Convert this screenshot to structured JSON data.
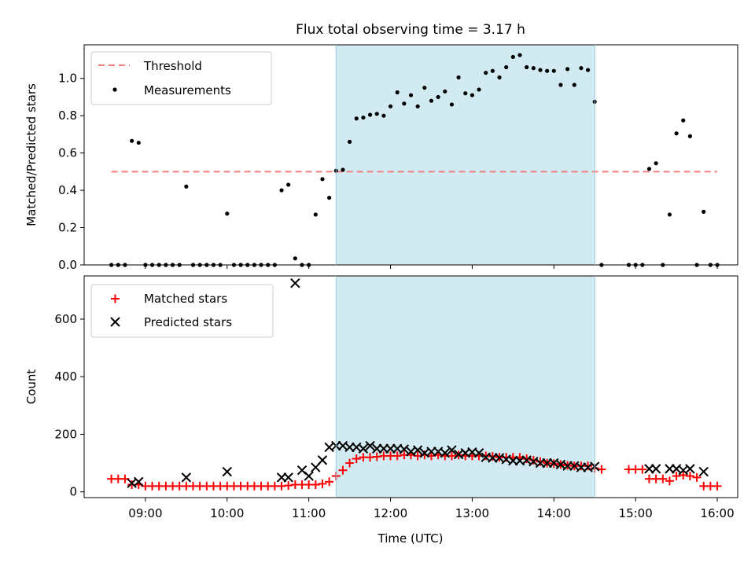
{
  "title": "Flux total observing time = 3.17 h",
  "colors": {
    "threshold": "#f08080",
    "measurements": "#000000",
    "matched": "#ff0000",
    "predicted": "#000000",
    "shade": "#add8e6"
  },
  "chart_data": [
    {
      "type": "scatter",
      "ylabel": "Matched/Predicted stars",
      "x_range": [
        "08:15",
        "16:15"
      ],
      "ylim": [
        0,
        1.18
      ],
      "yticks": [
        "0.0",
        "0.2",
        "0.4",
        "0.6",
        "0.8",
        "1.0"
      ],
      "shaded_interval": [
        "11:20",
        "14:30"
      ],
      "legend_position": "top-left",
      "legend": [
        "Threshold",
        "Measurements"
      ],
      "threshold": {
        "name": "Threshold",
        "value": 0.5,
        "x": [
          "08:35",
          "16:00"
        ]
      },
      "series": [
        {
          "name": "Measurements",
          "marker": "dot",
          "points": [
            [
              "08:35",
              0
            ],
            [
              "08:40",
              0
            ],
            [
              "08:45",
              0
            ],
            [
              "08:50",
              0.665
            ],
            [
              "08:55",
              0.655
            ],
            [
              "09:00",
              0
            ],
            [
              "09:05",
              0
            ],
            [
              "09:10",
              0
            ],
            [
              "09:15",
              0
            ],
            [
              "09:20",
              0
            ],
            [
              "09:25",
              0
            ],
            [
              "09:30",
              0.42
            ],
            [
              "09:35",
              0
            ],
            [
              "09:40",
              0
            ],
            [
              "09:45",
              0
            ],
            [
              "09:50",
              0
            ],
            [
              "09:55",
              0
            ],
            [
              "10:00",
              0.275
            ],
            [
              "10:05",
              0
            ],
            [
              "10:10",
              0
            ],
            [
              "10:15",
              0
            ],
            [
              "10:20",
              0
            ],
            [
              "10:25",
              0
            ],
            [
              "10:30",
              0
            ],
            [
              "10:35",
              0
            ],
            [
              "10:40",
              0.4
            ],
            [
              "10:45",
              0.43
            ],
            [
              "10:50",
              0.035
            ],
            [
              "10:55",
              0
            ],
            [
              "11:00",
              0
            ],
            [
              "11:05",
              0.27
            ],
            [
              "11:10",
              0.46
            ],
            [
              "11:15",
              0.36
            ],
            [
              "11:20",
              0.505
            ],
            [
              "11:25",
              0.51
            ],
            [
              "11:30",
              0.66
            ],
            [
              "11:35",
              0.785
            ],
            [
              "11:40",
              0.79
            ],
            [
              "11:45",
              0.805
            ],
            [
              "11:50",
              0.81
            ],
            [
              "11:55",
              0.8
            ],
            [
              "12:00",
              0.85
            ],
            [
              "12:05",
              0.925
            ],
            [
              "12:10",
              0.865
            ],
            [
              "12:15",
              0.91
            ],
            [
              "12:20",
              0.85
            ],
            [
              "12:25",
              0.95
            ],
            [
              "12:30",
              0.88
            ],
            [
              "12:35",
              0.9
            ],
            [
              "12:40",
              0.93
            ],
            [
              "12:45",
              0.86
            ],
            [
              "12:50",
              1.005
            ],
            [
              "12:55",
              0.92
            ],
            [
              "13:00",
              0.91
            ],
            [
              "13:05",
              0.94
            ],
            [
              "13:10",
              1.03
            ],
            [
              "13:15",
              1.04
            ],
            [
              "13:20",
              1.005
            ],
            [
              "13:25",
              1.06
            ],
            [
              "13:30",
              1.115
            ],
            [
              "13:35",
              1.125
            ],
            [
              "13:40",
              1.06
            ],
            [
              "13:45",
              1.055
            ],
            [
              "13:50",
              1.045
            ],
            [
              "13:55",
              1.04
            ],
            [
              "14:00",
              1.04
            ],
            [
              "14:05",
              0.965
            ],
            [
              "14:10",
              1.05
            ],
            [
              "14:15",
              0.965
            ],
            [
              "14:20",
              1.055
            ],
            [
              "14:25",
              1.045
            ],
            [
              "14:30",
              0.875
            ],
            [
              "14:35",
              0
            ],
            [
              "14:55",
              0
            ],
            [
              "15:00",
              0
            ],
            [
              "15:05",
              0
            ],
            [
              "15:10",
              0.515
            ],
            [
              "15:15",
              0.545
            ],
            [
              "15:20",
              0
            ],
            [
              "15:25",
              0.27
            ],
            [
              "15:30",
              0.705
            ],
            [
              "15:35",
              0.775
            ],
            [
              "15:40",
              0.69
            ],
            [
              "15:45",
              0
            ],
            [
              "15:50",
              0.285
            ],
            [
              "15:55",
              0
            ],
            [
              "16:00",
              0
            ]
          ]
        }
      ]
    },
    {
      "type": "scatter",
      "xlabel": "Time (UTC)",
      "ylabel": "Count",
      "x_range": [
        "08:15",
        "16:15"
      ],
      "ylim": [
        -20,
        750
      ],
      "yticks": [
        "0",
        "200",
        "400",
        "600"
      ],
      "xticks": [
        "09:00",
        "10:00",
        "11:00",
        "12:00",
        "13:00",
        "14:00",
        "15:00",
        "16:00"
      ],
      "shaded_interval": [
        "11:20",
        "14:30"
      ],
      "legend_position": "top-left",
      "legend": [
        "Matched stars",
        "Predicted stars"
      ],
      "series": [
        {
          "name": "Matched stars",
          "marker": "plus",
          "points": [
            [
              "08:35",
              45
            ],
            [
              "08:40",
              45
            ],
            [
              "08:45",
              45
            ],
            [
              "08:50",
              25
            ],
            [
              "08:55",
              25
            ],
            [
              "09:00",
              20
            ],
            [
              "09:05",
              20
            ],
            [
              "09:10",
              20
            ],
            [
              "09:15",
              20
            ],
            [
              "09:20",
              20
            ],
            [
              "09:25",
              20
            ],
            [
              "09:30",
              20
            ],
            [
              "09:35",
              20
            ],
            [
              "09:40",
              20
            ],
            [
              "09:45",
              20
            ],
            [
              "09:50",
              20
            ],
            [
              "09:55",
              20
            ],
            [
              "10:00",
              20
            ],
            [
              "10:05",
              20
            ],
            [
              "10:10",
              20
            ],
            [
              "10:15",
              20
            ],
            [
              "10:20",
              20
            ],
            [
              "10:25",
              20
            ],
            [
              "10:30",
              20
            ],
            [
              "10:35",
              20
            ],
            [
              "10:40",
              20
            ],
            [
              "10:45",
              22
            ],
            [
              "10:50",
              25
            ],
            [
              "10:55",
              25
            ],
            [
              "11:00",
              25
            ],
            [
              "11:05",
              25
            ],
            [
              "11:10",
              28
            ],
            [
              "11:15",
              35
            ],
            [
              "11:20",
              55
            ],
            [
              "11:25",
              75
            ],
            [
              "11:30",
              100
            ],
            [
              "11:35",
              115
            ],
            [
              "11:40",
              120
            ],
            [
              "11:45",
              120
            ],
            [
              "11:50",
              122
            ],
            [
              "11:55",
              125
            ],
            [
              "12:00",
              125
            ],
            [
              "12:05",
              125
            ],
            [
              "12:10",
              128
            ],
            [
              "12:15",
              128
            ],
            [
              "12:20",
              125
            ],
            [
              "12:25",
              128
            ],
            [
              "12:30",
              125
            ],
            [
              "12:35",
              128
            ],
            [
              "12:40",
              125
            ],
            [
              "12:45",
              125
            ],
            [
              "12:50",
              128
            ],
            [
              "12:55",
              125
            ],
            [
              "13:00",
              125
            ],
            [
              "13:05",
              125
            ],
            [
              "13:10",
              125
            ],
            [
              "13:15",
              123
            ],
            [
              "13:20",
              120
            ],
            [
              "13:25",
              120
            ],
            [
              "13:30",
              120
            ],
            [
              "13:35",
              120
            ],
            [
              "13:40",
              115
            ],
            [
              "13:45",
              110
            ],
            [
              "13:50",
              105
            ],
            [
              "13:55",
              100
            ],
            [
              "14:00",
              98
            ],
            [
              "14:05",
              95
            ],
            [
              "14:10",
              92
            ],
            [
              "14:15",
              90
            ],
            [
              "14:20",
              90
            ],
            [
              "14:25",
              90
            ],
            [
              "14:30",
              82
            ],
            [
              "14:35",
              78
            ],
            [
              "14:55",
              78
            ],
            [
              "15:00",
              78
            ],
            [
              "15:05",
              78
            ],
            [
              "15:10",
              45
            ],
            [
              "15:15",
              45
            ],
            [
              "15:20",
              45
            ],
            [
              "15:25",
              38
            ],
            [
              "15:30",
              55
            ],
            [
              "15:35",
              58
            ],
            [
              "15:40",
              55
            ],
            [
              "15:45",
              50
            ],
            [
              "15:50",
              20
            ],
            [
              "15:55",
              20
            ],
            [
              "16:00",
              20
            ]
          ]
        },
        {
          "name": "Predicted stars",
          "marker": "x",
          "points": [
            [
              "08:50",
              30
            ],
            [
              "08:55",
              35
            ],
            [
              "09:30",
              50
            ],
            [
              "10:00",
              70
            ],
            [
              "10:40",
              50
            ],
            [
              "10:45",
              50
            ],
            [
              "10:50",
              725
            ],
            [
              "10:55",
              75
            ],
            [
              "11:00",
              55
            ],
            [
              "11:05",
              85
            ],
            [
              "11:10",
              110
            ],
            [
              "11:15",
              155
            ],
            [
              "11:20",
              160
            ],
            [
              "11:25",
              160
            ],
            [
              "11:30",
              155
            ],
            [
              "11:35",
              155
            ],
            [
              "11:40",
              150
            ],
            [
              "11:45",
              160
            ],
            [
              "11:50",
              150
            ],
            [
              "11:55",
              150
            ],
            [
              "12:00",
              150
            ],
            [
              "12:05",
              150
            ],
            [
              "12:10",
              148
            ],
            [
              "12:15",
              140
            ],
            [
              "12:20",
              145
            ],
            [
              "12:25",
              135
            ],
            [
              "12:30",
              140
            ],
            [
              "12:35",
              140
            ],
            [
              "12:40",
              135
            ],
            [
              "12:45",
              145
            ],
            [
              "12:50",
              130
            ],
            [
              "12:55",
              135
            ],
            [
              "13:00",
              138
            ],
            [
              "13:05",
              135
            ],
            [
              "13:10",
              120
            ],
            [
              "13:15",
              118
            ],
            [
              "13:20",
              118
            ],
            [
              "13:25",
              113
            ],
            [
              "13:30",
              108
            ],
            [
              "13:35",
              108
            ],
            [
              "13:40",
              110
            ],
            [
              "13:45",
              105
            ],
            [
              "13:50",
              100
            ],
            [
              "13:55",
              100
            ],
            [
              "14:00",
              100
            ],
            [
              "14:05",
              95
            ],
            [
              "14:10",
              90
            ],
            [
              "14:15",
              90
            ],
            [
              "14:20",
              85
            ],
            [
              "14:25",
              85
            ],
            [
              "14:30",
              88
            ],
            [
              "15:10",
              80
            ],
            [
              "15:15",
              80
            ],
            [
              "15:25",
              80
            ],
            [
              "15:30",
              80
            ],
            [
              "15:35",
              75
            ],
            [
              "15:40",
              80
            ],
            [
              "15:50",
              70
            ]
          ]
        }
      ]
    }
  ]
}
